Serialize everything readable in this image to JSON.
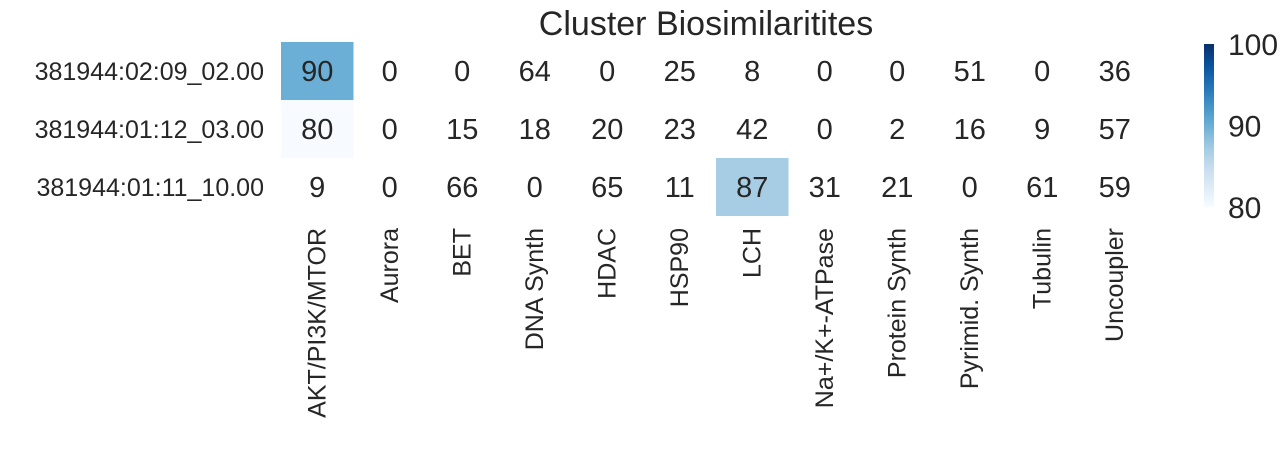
{
  "chart_data": {
    "type": "heatmap",
    "title": "Cluster Biosimilaritites",
    "rows": [
      "381944:02:09_02.00",
      "381944:01:12_03.00",
      "381944:01:11_10.00"
    ],
    "columns": [
      "AKT/PI3K/MTOR",
      "Aurora",
      "BET",
      "DNA Synth",
      "HDAC",
      "HSP90",
      "LCH",
      "Na+/K+-ATPase",
      "Protein Synth",
      "Pyrimid. Synth",
      "Tubulin",
      "Uncoupler"
    ],
    "values": [
      [
        90,
        0,
        0,
        64,
        0,
        25,
        8,
        0,
        0,
        51,
        0,
        36
      ],
      [
        80,
        0,
        15,
        18,
        20,
        23,
        42,
        0,
        2,
        16,
        9,
        57
      ],
      [
        9,
        0,
        66,
        0,
        65,
        11,
        87,
        31,
        21,
        0,
        61,
        59
      ]
    ],
    "color_scale": {
      "min": 80,
      "max": 100,
      "ticks": [
        80,
        90,
        100
      ],
      "colormap": "Blues",
      "under_color": "#ffffff"
    }
  }
}
